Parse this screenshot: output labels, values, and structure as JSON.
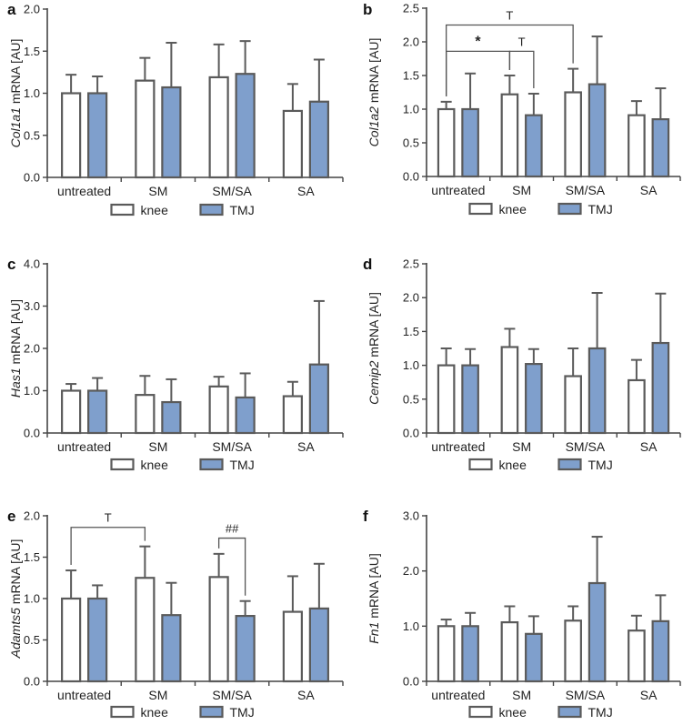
{
  "colors": {
    "knee": "#ffffff",
    "tmj": "#7f9fcc",
    "stroke": "#5a5a5a",
    "axis": "#444444"
  },
  "legend": {
    "knee": "knee",
    "tmj": "TMJ"
  },
  "chart_data": [
    {
      "panel": "a",
      "type": "bar",
      "categories": [
        "untreated",
        "SM",
        "SM/SA",
        "SA"
      ],
      "ylabel_gene": "Col1a1",
      "ylabel_suffix": " mRNA [AU]",
      "ylim": [
        0,
        2.0
      ],
      "yticks": [
        {
          "v": 0,
          "t": "0.0"
        },
        {
          "v": 0.5,
          "t": "0.5"
        },
        {
          "v": 1.0,
          "t": "1.0"
        },
        {
          "v": 1.5,
          "t": "1.5"
        },
        {
          "v": 2.0,
          "t": "2.0"
        }
      ],
      "series": [
        {
          "name": "knee",
          "values": [
            1.0,
            1.15,
            1.19,
            0.79
          ],
          "errors": [
            0.22,
            0.27,
            0.39,
            0.32
          ]
        },
        {
          "name": "TMJ",
          "values": [
            1.0,
            1.07,
            1.23,
            0.9
          ],
          "errors": [
            0.2,
            0.53,
            0.39,
            0.5
          ]
        }
      ],
      "annotations": []
    },
    {
      "panel": "b",
      "type": "bar",
      "categories": [
        "untreated",
        "SM",
        "SM/SA",
        "SA"
      ],
      "ylabel_gene": "Col1a2",
      "ylabel_suffix": " mRNA [AU]",
      "ylim": [
        0,
        2.5
      ],
      "yticks": [
        {
          "v": 0,
          "t": "0.0"
        },
        {
          "v": 0.5,
          "t": "0.5"
        },
        {
          "v": 1.0,
          "t": "1.0"
        },
        {
          "v": 1.5,
          "t": "1.5"
        },
        {
          "v": 2.0,
          "t": "2.0"
        },
        {
          "v": 2.5,
          "t": "2.5"
        }
      ],
      "series": [
        {
          "name": "knee",
          "values": [
            1.0,
            1.22,
            1.25,
            0.91
          ],
          "errors": [
            0.11,
            0.28,
            0.35,
            0.21
          ]
        },
        {
          "name": "TMJ",
          "values": [
            1.0,
            0.91,
            1.37,
            0.85
          ],
          "errors": [
            0.53,
            0.32,
            0.71,
            0.46
          ]
        }
      ],
      "annotations": [
        {
          "from": [
            0,
            0
          ],
          "to": [
            2,
            0
          ],
          "y": 2.25,
          "label": "T",
          "bold": false
        },
        {
          "from": [
            0,
            0
          ],
          "to": [
            1,
            0
          ],
          "y": 1.86,
          "label": "*",
          "bold": true
        },
        {
          "from": [
            1,
            0
          ],
          "to": [
            1,
            1
          ],
          "y": 1.86,
          "label": "T",
          "bold": false
        }
      ]
    },
    {
      "panel": "c",
      "type": "bar",
      "categories": [
        "untreated",
        "SM",
        "SM/SA",
        "SA"
      ],
      "ylabel_gene": "Has1",
      "ylabel_suffix": " mRNA [AU]",
      "ylim": [
        0,
        4.0
      ],
      "yticks": [
        {
          "v": 0,
          "t": "0.0"
        },
        {
          "v": 1.0,
          "t": "1.0"
        },
        {
          "v": 2.0,
          "t": "2.0"
        },
        {
          "v": 3.0,
          "t": "3.0"
        },
        {
          "v": 4.0,
          "t": "4.0"
        }
      ],
      "series": [
        {
          "name": "knee",
          "values": [
            1.0,
            0.9,
            1.1,
            0.87
          ],
          "errors": [
            0.16,
            0.45,
            0.23,
            0.34
          ]
        },
        {
          "name": "TMJ",
          "values": [
            1.0,
            0.73,
            0.84,
            1.62
          ],
          "errors": [
            0.3,
            0.54,
            0.57,
            1.5
          ]
        }
      ],
      "annotations": []
    },
    {
      "panel": "d",
      "type": "bar",
      "categories": [
        "untreated",
        "SM",
        "SM/SA",
        "SA"
      ],
      "ylabel_gene": "Cemip2",
      "ylabel_suffix": " mRNA [AU]",
      "ylim": [
        0,
        2.5
      ],
      "yticks": [
        {
          "v": 0,
          "t": "0.0"
        },
        {
          "v": 0.5,
          "t": "0.5"
        },
        {
          "v": 1.0,
          "t": "1.0"
        },
        {
          "v": 1.5,
          "t": "1.5"
        },
        {
          "v": 2.0,
          "t": "2.0"
        },
        {
          "v": 2.5,
          "t": "2.5"
        }
      ],
      "series": [
        {
          "name": "knee",
          "values": [
            1.0,
            1.27,
            0.84,
            0.78
          ],
          "errors": [
            0.25,
            0.27,
            0.41,
            0.3
          ]
        },
        {
          "name": "TMJ",
          "values": [
            1.0,
            1.02,
            1.25,
            1.33
          ],
          "errors": [
            0.24,
            0.22,
            0.82,
            0.73
          ]
        }
      ],
      "annotations": []
    },
    {
      "panel": "e",
      "type": "bar",
      "categories": [
        "untreated",
        "SM",
        "SM/SA",
        "SA"
      ],
      "ylabel_gene": "Adamts5",
      "ylabel_suffix": " mRNA [AU]",
      "ylim": [
        0,
        2.0
      ],
      "yticks": [
        {
          "v": 0,
          "t": "0.0"
        },
        {
          "v": 0.5,
          "t": "0.5"
        },
        {
          "v": 1.0,
          "t": "1.0"
        },
        {
          "v": 1.5,
          "t": "1.5"
        },
        {
          "v": 2.0,
          "t": "2.0"
        }
      ],
      "series": [
        {
          "name": "knee",
          "values": [
            1.0,
            1.25,
            1.26,
            0.84
          ],
          "errors": [
            0.34,
            0.38,
            0.28,
            0.43
          ]
        },
        {
          "name": "TMJ",
          "values": [
            1.0,
            0.8,
            0.79,
            0.88
          ],
          "errors": [
            0.16,
            0.39,
            0.18,
            0.54
          ]
        }
      ],
      "annotations": [
        {
          "from": [
            0,
            0
          ],
          "to": [
            1,
            0
          ],
          "y": 1.86,
          "label": "T",
          "bold": false
        },
        {
          "from": [
            2,
            0
          ],
          "to": [
            2,
            1
          ],
          "y": 1.73,
          "label": "##",
          "bold": false
        }
      ]
    },
    {
      "panel": "f",
      "type": "bar",
      "categories": [
        "untreated",
        "SM",
        "SM/SA",
        "SA"
      ],
      "ylabel_gene": "Fn1",
      "ylabel_suffix": " mRNA [AU]",
      "ylim": [
        0,
        3.0
      ],
      "yticks": [
        {
          "v": 0,
          "t": "0.0"
        },
        {
          "v": 1.0,
          "t": "1.0"
        },
        {
          "v": 2.0,
          "t": "2.0"
        },
        {
          "v": 3.0,
          "t": "3.0"
        }
      ],
      "series": [
        {
          "name": "knee",
          "values": [
            1.0,
            1.07,
            1.1,
            0.92
          ],
          "errors": [
            0.12,
            0.29,
            0.26,
            0.27
          ]
        },
        {
          "name": "TMJ",
          "values": [
            1.0,
            0.86,
            1.78,
            1.09
          ],
          "errors": [
            0.24,
            0.32,
            0.84,
            0.47
          ]
        }
      ],
      "annotations": []
    }
  ]
}
